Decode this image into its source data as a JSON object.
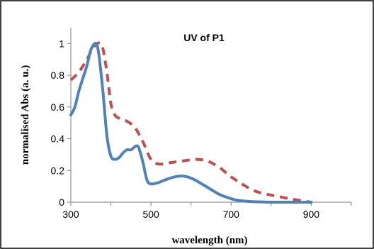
{
  "chart_data": {
    "type": "line",
    "title": "UV of P1",
    "xlabel": "wavelength (nm)",
    "ylabel": "normalised Abs (a. u.)",
    "xlim": [
      300,
      1000
    ],
    "ylim": [
      0,
      1.1
    ],
    "x_ticks": [
      300,
      500,
      700,
      900
    ],
    "x_tick_labels": [
      "300",
      "500",
      "700",
      "900"
    ],
    "y_ticks": [
      0,
      0.2,
      0.4,
      0.6,
      0.8,
      1
    ],
    "y_tick_labels": [
      "0",
      "0.2",
      "0.4",
      "0.6",
      "0.8",
      "1"
    ],
    "grid": false,
    "legend": "none",
    "series": [
      {
        "color": "#4f81bd",
        "style": "solid",
        "x": [
          300,
          310,
          320,
          330,
          340,
          350,
          360,
          365,
          370,
          380,
          390,
          400,
          410,
          420,
          430,
          440,
          450,
          460,
          465,
          470,
          480,
          490,
          500,
          520,
          540,
          560,
          575,
          590,
          610,
          630,
          650,
          670,
          690,
          710,
          730,
          750,
          770,
          800,
          850,
          900
        ],
        "y": [
          0.55,
          0.6,
          0.7,
          0.78,
          0.86,
          0.96,
          1.0,
          0.99,
          0.93,
          0.7,
          0.42,
          0.29,
          0.27,
          0.28,
          0.31,
          0.33,
          0.33,
          0.35,
          0.355,
          0.34,
          0.25,
          0.14,
          0.115,
          0.125,
          0.145,
          0.16,
          0.165,
          0.16,
          0.14,
          0.11,
          0.08,
          0.05,
          0.03,
          0.015,
          0.008,
          0.004,
          0.002,
          0.0,
          0.0,
          0.0
        ]
      },
      {
        "color": "#c0504d",
        "style": "dashed",
        "x": [
          300,
          320,
          340,
          355,
          365,
          375,
          380,
          390,
          400,
          410,
          420,
          440,
          460,
          480,
          500,
          520,
          550,
          580,
          610,
          640,
          670,
          700,
          730,
          760,
          790,
          820,
          850,
          880,
          900
        ],
        "y": [
          0.77,
          0.82,
          0.9,
          0.97,
          1.0,
          1.0,
          0.97,
          0.82,
          0.62,
          0.55,
          0.53,
          0.51,
          0.47,
          0.38,
          0.27,
          0.24,
          0.25,
          0.26,
          0.27,
          0.26,
          0.22,
          0.16,
          0.11,
          0.07,
          0.05,
          0.035,
          0.02,
          0.008,
          0.0
        ]
      }
    ]
  }
}
